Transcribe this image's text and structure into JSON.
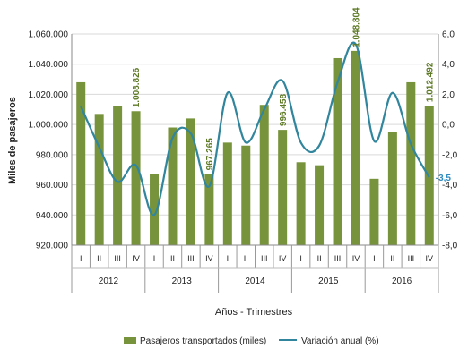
{
  "chart_data": {
    "type": "bar+line",
    "title": "",
    "xlabel": "Años - Trimestres",
    "ylabel": "Miles de pasajeros",
    "ylabel_right": "",
    "ylim": [
      920000,
      1060000
    ],
    "ylim_right": [
      -8,
      6
    ],
    "y_ticks": [
      "920.000",
      "940.000",
      "960.000",
      "980.000",
      "1.000.000",
      "1.020.000",
      "1.040.000",
      "1.060.000"
    ],
    "y_right_ticks": [
      "-8,0",
      "-6,0",
      "-4,0",
      "-2,0",
      "0,0",
      "2,0",
      "4,0",
      "6,0"
    ],
    "years": [
      "2012",
      "2013",
      "2014",
      "2015",
      "2016"
    ],
    "categories": [
      "I",
      "II",
      "III",
      "IV",
      "I",
      "II",
      "III",
      "IV",
      "I",
      "II",
      "III",
      "IV",
      "I",
      "II",
      "III",
      "IV",
      "I",
      "II",
      "III",
      "IV"
    ],
    "series": [
      {
        "name": "Pasajeros transportados (miles)",
        "kind": "bar",
        "axis": "left",
        "color": "#77933c",
        "values": [
          1028000,
          1007000,
          1012000,
          1008826,
          967000,
          998000,
          1004000,
          967265,
          988000,
          986000,
          1013000,
          996458,
          975000,
          973000,
          1044000,
          1048804,
          964000,
          995000,
          1028000,
          1012492
        ]
      },
      {
        "name": "Variación anual (%)",
        "kind": "line",
        "axis": "right",
        "color": "#31859c",
        "values": [
          1.2,
          -1.5,
          -3.8,
          -2.7,
          -6.0,
          -0.9,
          -0.6,
          -4.1,
          2.1,
          -1.2,
          1.0,
          2.9,
          -1.2,
          -1.4,
          2.8,
          5.3,
          -1.1,
          2.1,
          -1.3,
          -3.5
        ]
      }
    ],
    "annotations": [
      {
        "index": 3,
        "text": "1.008.826"
      },
      {
        "index": 7,
        "text": "967.265"
      },
      {
        "index": 11,
        "text": "996.458"
      },
      {
        "index": 15,
        "text": "1.048.804"
      },
      {
        "index": 19,
        "text": "1.012.492"
      }
    ],
    "line_annotation": {
      "index": 19,
      "text": "-3,5"
    },
    "legend_position": "bottom"
  }
}
